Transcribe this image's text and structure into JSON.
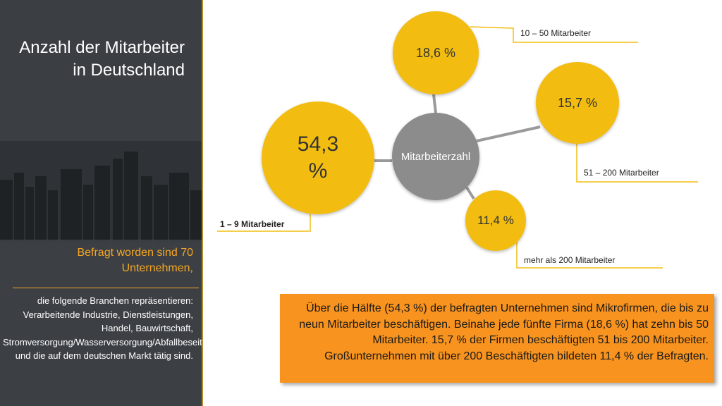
{
  "sidebar": {
    "title": "Anzahl der Mitarbeiter in Deutschland",
    "subtitle": "Befragt worden sind 70 Unternehmen,",
    "body": "die folgende Branchen repräsentieren: Verarbeitende Industrie, Dienstleistungen, Handel, Bauwirtschaft, Stromversorgung/Wasserversorgung/Abfallbeseitigung, und die auf dem deutschen Markt tätig sind."
  },
  "diagram": {
    "center": "Mitarbeiterzahl",
    "nodes": [
      {
        "value": "54,3 %",
        "label": "1 – 9 Mitarbeiter"
      },
      {
        "value": "18,6 %",
        "label": "10 – 50 Mitarbeiter"
      },
      {
        "value": "15,7 %",
        "label": "51 – 200 Mitarbeiter"
      },
      {
        "value": "11,4 %",
        "label": "mehr als 200 Mitarbeiter"
      }
    ]
  },
  "summary": "Über die Hälfte (54,3 %) der befragten Unternehmen sind Mikrofirmen, die bis zu neun Mitarbeiter beschäftigen. Beinahe jede fünfte Firma (18,6 %) hat zehn bis 50 Mitarbeiter. 15,7 % der Firmen beschäftigten 51 bis 200 Mitarbeiter. Großunternehmen mit über 200 Beschäftigten bildeten 11,4 % der Befragten.",
  "colors": {
    "accent_orange": "#f7931e",
    "bubble_yellow": "#f2bd10",
    "center_grey": "#8c8c8c"
  }
}
